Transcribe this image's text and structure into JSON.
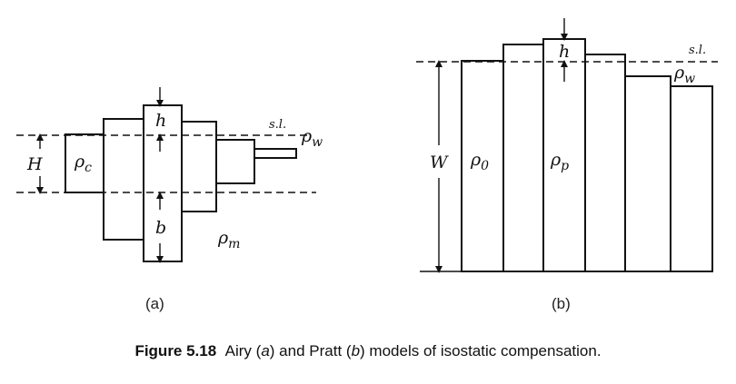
{
  "diagram_a": {
    "panel_label": "(a)",
    "labels": {
      "h": "h",
      "b": "b",
      "H": "H",
      "rho_c": "ρc",
      "rho_m": "ρm",
      "rho_w": "ρw",
      "sea_level": "s.l."
    }
  },
  "diagram_b": {
    "panel_label": "(b)",
    "labels": {
      "h": "h",
      "W": "W",
      "rho_0": "ρ0",
      "rho_p": "ρp",
      "rho_w": "ρw",
      "sea_level": "s.l."
    }
  },
  "caption": {
    "number": "Figure 5.18",
    "text_1": "Airy (",
    "a": "a",
    "text_2": ") and Pratt (",
    "b": "b",
    "text_3": ") models of isostatic compensation."
  }
}
